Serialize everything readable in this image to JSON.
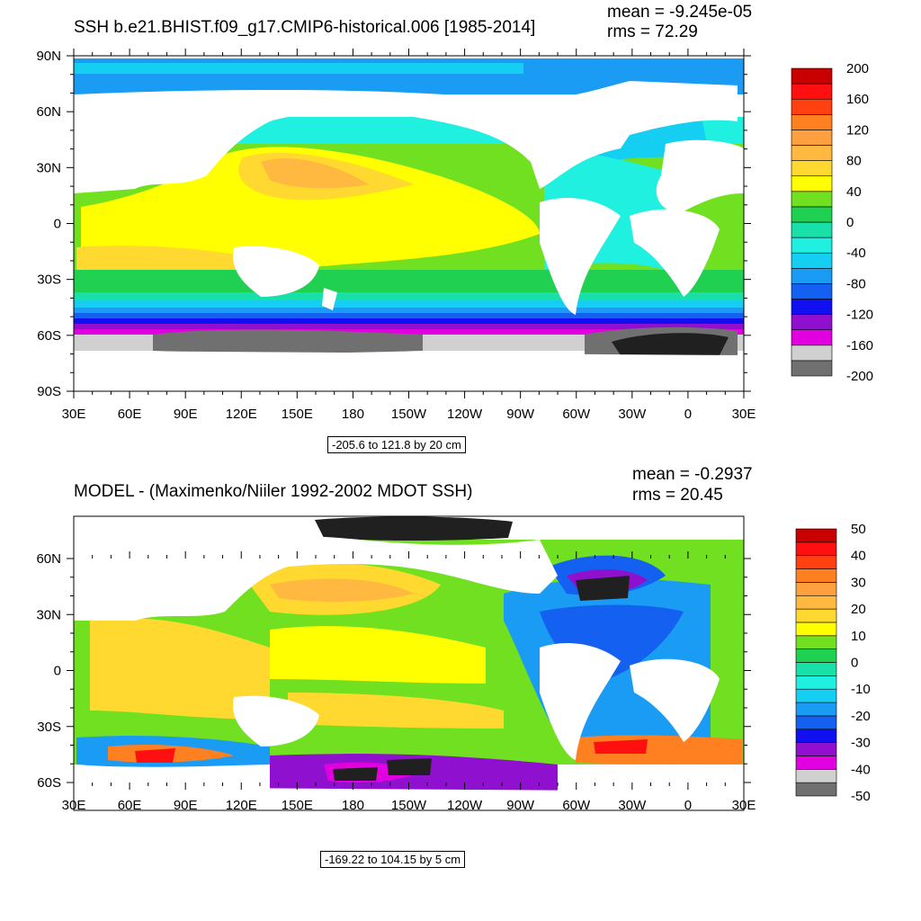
{
  "x_ticks": [
    "30E",
    "60E",
    "90E",
    "120E",
    "150E",
    "180",
    "150W",
    "120W",
    "90W",
    "60W",
    "30W",
    "0",
    "30E"
  ],
  "panels": [
    {
      "title": "SSH b.e21.BHIST.f09_g17.CMIP6-historical.006 [1985-2014]",
      "mean": "mean = -9.245e-05",
      "rms": "rms = 72.29",
      "range": "-205.6 to 121.8 by 20 cm",
      "y_ticks": [
        "90N",
        "60N",
        "30N",
        "0",
        "30S",
        "60S",
        "90S"
      ],
      "colorbar_labels": [
        "200",
        "160",
        "120",
        "80",
        "40",
        "0",
        "-40",
        "-80",
        "-120",
        "-160",
        "-200"
      ],
      "colors": [
        "#707070",
        "#d0d0d0",
        "#e000e0",
        "#9010d0",
        "#1010f0",
        "#1460f0",
        "#1a9cf4",
        "#14cff2",
        "#20f0e0",
        "#18e0a8",
        "#20d050",
        "#70e020",
        "#ffff00",
        "#ffd830",
        "#ffb840",
        "#ffa040",
        "#ff8020",
        "#ff4010",
        "#ff1010",
        "#c80000"
      ]
    },
    {
      "title": "MODEL - (Maximenko/Niiler 1992-2002 MDOT SSH)",
      "mean": "mean = -0.2937",
      "rms": "rms = 20.45",
      "range": "-169.22 to 104.15 by 5 cm",
      "y_ticks": [
        "60N",
        "30N",
        "0",
        "30S",
        "60S"
      ],
      "colorbar_labels": [
        "50",
        "40",
        "30",
        "20",
        "10",
        "0",
        "-10",
        "-20",
        "-30",
        "-40",
        "-50"
      ],
      "colors": [
        "#707070",
        "#d0d0d0",
        "#e000e0",
        "#9010d0",
        "#1010f0",
        "#1460f0",
        "#1a9cf4",
        "#14cff2",
        "#20f0e0",
        "#18e0a8",
        "#20d050",
        "#70e020",
        "#ffff00",
        "#ffd830",
        "#ffb840",
        "#ffa040",
        "#ff8020",
        "#ff4010",
        "#ff1010",
        "#c80000"
      ]
    }
  ]
}
